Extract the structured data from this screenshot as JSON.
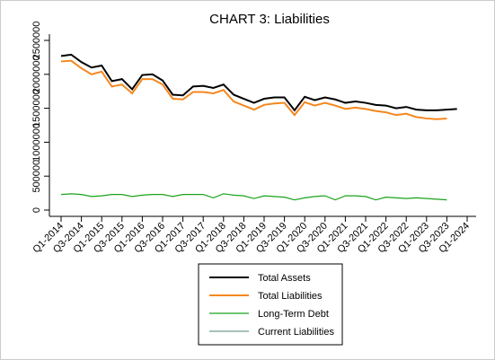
{
  "chart_data": {
    "type": "line",
    "title": "CHART 3: Liabilities",
    "categories": [
      "Q1-2014",
      null,
      "Q3-2014",
      null,
      "Q1-2015",
      null,
      "Q3-2015",
      null,
      "Q1-2016",
      null,
      "Q3-2016",
      null,
      "Q1-2017",
      null,
      "Q3-2017",
      null,
      "Q1-2018",
      null,
      "Q3-2018",
      null,
      "Q1-2019",
      null,
      "Q3-2019",
      null,
      "Q1-2020",
      null,
      "Q3-2020",
      null,
      "Q1-2021",
      null,
      "Q3-2021",
      null,
      "Q1-2022",
      null,
      "Q3-2022",
      null,
      "Q1-2023",
      null,
      "Q3-2023",
      null,
      "Q1-2024"
    ],
    "series": [
      {
        "name": "Total Assets",
        "color": "#000000",
        "values": [
          2270000,
          2290000,
          2180000,
          2100000,
          2130000,
          1900000,
          1930000,
          1780000,
          1990000,
          2000000,
          1910000,
          1700000,
          1690000,
          1820000,
          1830000,
          1800000,
          1850000,
          1700000,
          1640000,
          1580000,
          1640000,
          1660000,
          1660000,
          1470000,
          1670000,
          1620000,
          1660000,
          1630000,
          1580000,
          1600000,
          1580000,
          1550000,
          1540000,
          1500000,
          1520000,
          1480000,
          1470000,
          1470000,
          1480000,
          1490000,
          null
        ]
      },
      {
        "name": "Total Liabilities",
        "color": "#f5871f",
        "values": [
          2190000,
          2200000,
          2090000,
          2000000,
          2040000,
          1820000,
          1850000,
          1720000,
          1930000,
          1930000,
          1850000,
          1640000,
          1630000,
          1740000,
          1740000,
          1720000,
          1770000,
          1600000,
          1540000,
          1480000,
          1550000,
          1570000,
          1580000,
          1400000,
          1590000,
          1540000,
          1580000,
          1540000,
          1490000,
          1510000,
          1490000,
          1460000,
          1440000,
          1400000,
          1420000,
          1370000,
          1350000,
          1340000,
          1350000,
          null,
          null
        ]
      },
      {
        "name": "Long-Term Debt",
        "color": "#1aa31a",
        "values": [
          230000,
          240000,
          230000,
          200000,
          210000,
          230000,
          230000,
          200000,
          220000,
          230000,
          230000,
          200000,
          230000,
          230000,
          230000,
          180000,
          240000,
          220000,
          210000,
          170000,
          210000,
          200000,
          190000,
          150000,
          180000,
          200000,
          210000,
          150000,
          210000,
          210000,
          200000,
          150000,
          190000,
          180000,
          170000,
          180000,
          170000,
          160000,
          150000,
          null,
          null
        ]
      },
      {
        "name": "Current Liabilities",
        "color": "#6f9e8c",
        "values": [
          null,
          null,
          null,
          null,
          null,
          null,
          null,
          null,
          null,
          null,
          null,
          null,
          null,
          null,
          null,
          null,
          null,
          null,
          null,
          null,
          null,
          null,
          null,
          null,
          null,
          null,
          null,
          null,
          null,
          null,
          null,
          null,
          null,
          null,
          null,
          null,
          null,
          null,
          null,
          null,
          null
        ]
      }
    ],
    "ylim": [
      0,
      2500000
    ],
    "yticks": [
      0,
      500000,
      1000000,
      1500000,
      2000000,
      2500000
    ],
    "legend": "bottom"
  }
}
